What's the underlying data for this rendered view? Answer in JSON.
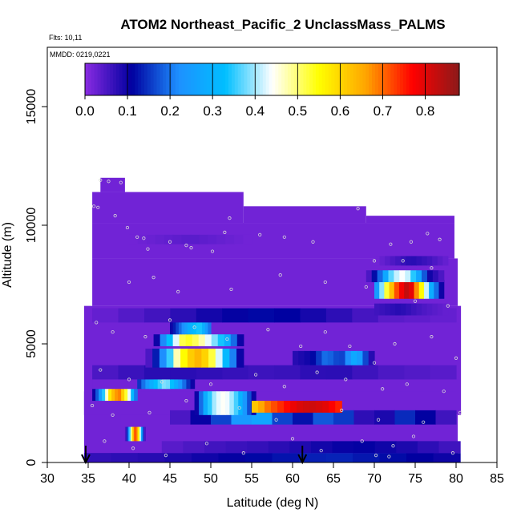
{
  "chart_data": {
    "type": "heatmap",
    "title": "ATOM2 Northeast_Pacific_2 UnclassMass_PALMS",
    "flights_label": "Flts: 10,11",
    "mmdd_label": "MMDD: 0219,0221",
    "xlabel": "Latitude (deg N)",
    "ylabel": "Altitude (m)",
    "xlim": [
      30,
      85
    ],
    "ylim": [
      0,
      17500
    ],
    "x_ticks": [
      "30",
      "35",
      "40",
      "45",
      "50",
      "55",
      "60",
      "65",
      "70",
      "75",
      "80",
      "85"
    ],
    "y_ticks": [
      "0",
      "5000",
      "10000",
      "15000"
    ],
    "colorbar": {
      "range": [
        0,
        0.88
      ],
      "tick_labels": [
        "0.0",
        "0.1",
        "0.2",
        "0.3",
        "0.4",
        "0.5",
        "0.6",
        "0.7",
        "0.8"
      ],
      "stops": [
        "#8a2be2",
        "#0000a0",
        "#1e90ff",
        "#00bfff",
        "#ffffff",
        "#ffff00",
        "#ffa500",
        "#ff0000",
        "#8b1a1a"
      ]
    },
    "background_value": 0.02,
    "flight_arrows_lat": [
      34.7,
      61.2
    ],
    "sample_points": [
      {
        "lat": 36.5,
        "alt": 11900
      },
      {
        "lat": 37.5,
        "alt": 11850
      },
      {
        "lat": 39.0,
        "alt": 11800
      },
      {
        "lat": 35.7,
        "alt": 10800
      },
      {
        "lat": 36.2,
        "alt": 10750
      },
      {
        "lat": 38.3,
        "alt": 10400
      },
      {
        "lat": 39.8,
        "alt": 9900
      },
      {
        "lat": 41.0,
        "alt": 9500
      },
      {
        "lat": 41.8,
        "alt": 9450
      },
      {
        "lat": 42.3,
        "alt": 9000
      },
      {
        "lat": 45.0,
        "alt": 9300
      },
      {
        "lat": 47.0,
        "alt": 9150
      },
      {
        "lat": 47.6,
        "alt": 9050
      },
      {
        "lat": 50.2,
        "alt": 8900
      },
      {
        "lat": 52.3,
        "alt": 10300
      },
      {
        "lat": 51.7,
        "alt": 9700
      },
      {
        "lat": 56.0,
        "alt": 9600
      },
      {
        "lat": 59.0,
        "alt": 9500
      },
      {
        "lat": 62.5,
        "alt": 9300
      },
      {
        "lat": 68.0,
        "alt": 10700
      },
      {
        "lat": 70.0,
        "alt": 8500
      },
      {
        "lat": 72.0,
        "alt": 9200
      },
      {
        "lat": 74.5,
        "alt": 9300
      },
      {
        "lat": 76.5,
        "alt": 9650
      },
      {
        "lat": 78.0,
        "alt": 9400
      },
      {
        "lat": 73.5,
        "alt": 8500
      },
      {
        "lat": 77.0,
        "alt": 8200
      },
      {
        "lat": 40.0,
        "alt": 7600
      },
      {
        "lat": 43.0,
        "alt": 7800
      },
      {
        "lat": 46.0,
        "alt": 7200
      },
      {
        "lat": 52.5,
        "alt": 7300
      },
      {
        "lat": 58.5,
        "alt": 7900
      },
      {
        "lat": 64.0,
        "alt": 7600
      },
      {
        "lat": 69.0,
        "alt": 7400
      },
      {
        "lat": 75.0,
        "alt": 6800
      },
      {
        "lat": 79.0,
        "alt": 6600
      },
      {
        "lat": 36.0,
        "alt": 5900
      },
      {
        "lat": 38.0,
        "alt": 5500
      },
      {
        "lat": 42.0,
        "alt": 5300
      },
      {
        "lat": 45.0,
        "alt": 6000
      },
      {
        "lat": 48.0,
        "alt": 5700
      },
      {
        "lat": 52.0,
        "alt": 5200
      },
      {
        "lat": 57.0,
        "alt": 5600
      },
      {
        "lat": 61.0,
        "alt": 4900
      },
      {
        "lat": 64.0,
        "alt": 5500
      },
      {
        "lat": 67.0,
        "alt": 4900
      },
      {
        "lat": 70.0,
        "alt": 4200
      },
      {
        "lat": 72.5,
        "alt": 5000
      },
      {
        "lat": 77.0,
        "alt": 5300
      },
      {
        "lat": 80.0,
        "alt": 4400
      },
      {
        "lat": 36.5,
        "alt": 3900
      },
      {
        "lat": 40.0,
        "alt": 3500
      },
      {
        "lat": 44.0,
        "alt": 3400
      },
      {
        "lat": 50.0,
        "alt": 3300
      },
      {
        "lat": 55.5,
        "alt": 3700
      },
      {
        "lat": 59.0,
        "alt": 3200
      },
      {
        "lat": 63.0,
        "alt": 3800
      },
      {
        "lat": 66.5,
        "alt": 3500
      },
      {
        "lat": 71.0,
        "alt": 3100
      },
      {
        "lat": 74.0,
        "alt": 3300
      },
      {
        "lat": 78.5,
        "alt": 3000
      },
      {
        "lat": 35.5,
        "alt": 2400
      },
      {
        "lat": 38.0,
        "alt": 2000
      },
      {
        "lat": 42.5,
        "alt": 2100
      },
      {
        "lat": 47.0,
        "alt": 2600
      },
      {
        "lat": 53.5,
        "alt": 2300
      },
      {
        "lat": 58.0,
        "alt": 1800
      },
      {
        "lat": 66.0,
        "alt": 2200
      },
      {
        "lat": 70.5,
        "alt": 1800
      },
      {
        "lat": 76.0,
        "alt": 1700
      },
      {
        "lat": 80.5,
        "alt": 2100
      },
      {
        "lat": 37.0,
        "alt": 900
      },
      {
        "lat": 40.5,
        "alt": 600
      },
      {
        "lat": 44.5,
        "alt": 300
      },
      {
        "lat": 49.5,
        "alt": 800
      },
      {
        "lat": 54.0,
        "alt": 400
      },
      {
        "lat": 60.0,
        "alt": 1000
      },
      {
        "lat": 63.5,
        "alt": 500
      },
      {
        "lat": 68.5,
        "alt": 900
      },
      {
        "lat": 70.2,
        "alt": 300
      },
      {
        "lat": 71.8,
        "alt": 250
      },
      {
        "lat": 72.3,
        "alt": 700
      },
      {
        "lat": 74.8,
        "alt": 1100
      },
      {
        "lat": 79.6,
        "alt": 400
      }
    ]
  }
}
